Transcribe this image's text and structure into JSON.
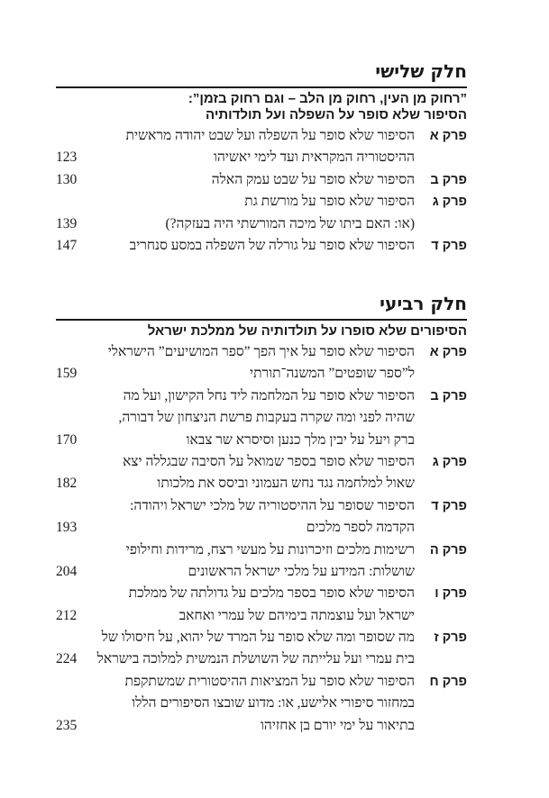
{
  "parts": [
    {
      "title": "חלק שלישי",
      "subtitle": [
        "”רחוק מן העין, רחוק מן הלב – וגם רחוק בזמן”:",
        "הסיפור שלא סופר על השפלה ועל תולדותיה"
      ],
      "chapters": [
        {
          "label": "פרק א",
          "lines": [
            "הסיפור שלא סופר על השפלה ועל שבט יהודה מראשית",
            "ההיסטוריה המקראית ועד לימי יאשיהו"
          ],
          "page": "123"
        },
        {
          "label": "פרק ב",
          "lines": [
            "הסיפור שלא סופר על שבט עמק האלה"
          ],
          "page": "130"
        },
        {
          "label": "פרק ג",
          "lines": [
            "הסיפור שלא סופר על מורשת גת",
            "(או: האם ביתו של מיכה המורשתי היה בעזקה?)"
          ],
          "page": "139"
        },
        {
          "label": "פרק ד",
          "lines": [
            "הסיפור שלא סופר על גורלה של השפלה במסע סנחריב"
          ],
          "page": "147"
        }
      ]
    },
    {
      "title": "חלק רביעי",
      "subtitle": [
        "הסיפורים שלא סופרו על תולדותיה של ממלכת ישראל"
      ],
      "chapters": [
        {
          "label": "פרק א",
          "lines": [
            "הסיפור שלא סופר על איך הפך ”ספר המושיעים” הישראלי",
            "ל”ספר שופטים” המשנה־תורתי"
          ],
          "page": "159"
        },
        {
          "label": "פרק ב",
          "lines": [
            "הסיפור שלא סופר על המלחמה ליד נחל הקישון, ועל מה",
            "שהיה לפני ומה שקרה בעקבות פרשת הניצחון של דבורה,",
            "ברק ויעל על יבין מלך כנען וסיסרא שר צבאו"
          ],
          "page": "170"
        },
        {
          "label": "פרק ג",
          "lines": [
            "הסיפור שלא סופר בספר שמואל על הסיבה שבגללה יצא",
            "שאול למלחמה נגד נחש העמוני וביסס את מלכותו"
          ],
          "page": "182"
        },
        {
          "label": "פרק ד",
          "lines": [
            "הסיפור שסופר על ההיסטוריה של מלכי ישראל ויהודה:",
            "הקדמה לספר מלכים"
          ],
          "page": "193"
        },
        {
          "label": "פרק ה",
          "lines": [
            "רשימות מלכים וזיכרונות על מעשי רצח, מרידות וחילופי",
            "שושלות: המידע על מלכי ישראל הראשונים"
          ],
          "page": "204"
        },
        {
          "label": "פרק ו",
          "lines": [
            "הסיפור שלא סופר בספר מלכים על גדולתה של ממלכת",
            "ישראל ועל עוצמתה בימיהם של עמרי ואחאב"
          ],
          "page": "212"
        },
        {
          "label": "פרק ז",
          "lines": [
            "מה שסופר ומה שלא סופר על המרד של יהוא, על חיסולו של",
            "בית עמרי ועל עלייתה של השושלת הנמשית למלוכה בישראל"
          ],
          "page": "224"
        },
        {
          "label": "פרק ח",
          "lines": [
            "הסיפור שלא סופר על המציאות ההיסטורית שמשתקפת",
            "במחזור סיפורי אלישע, או: מדוע שובצו הסיפורים הללו",
            "בתיאור על ימי יורם בן אחזיהו"
          ],
          "page": "235"
        }
      ]
    }
  ]
}
